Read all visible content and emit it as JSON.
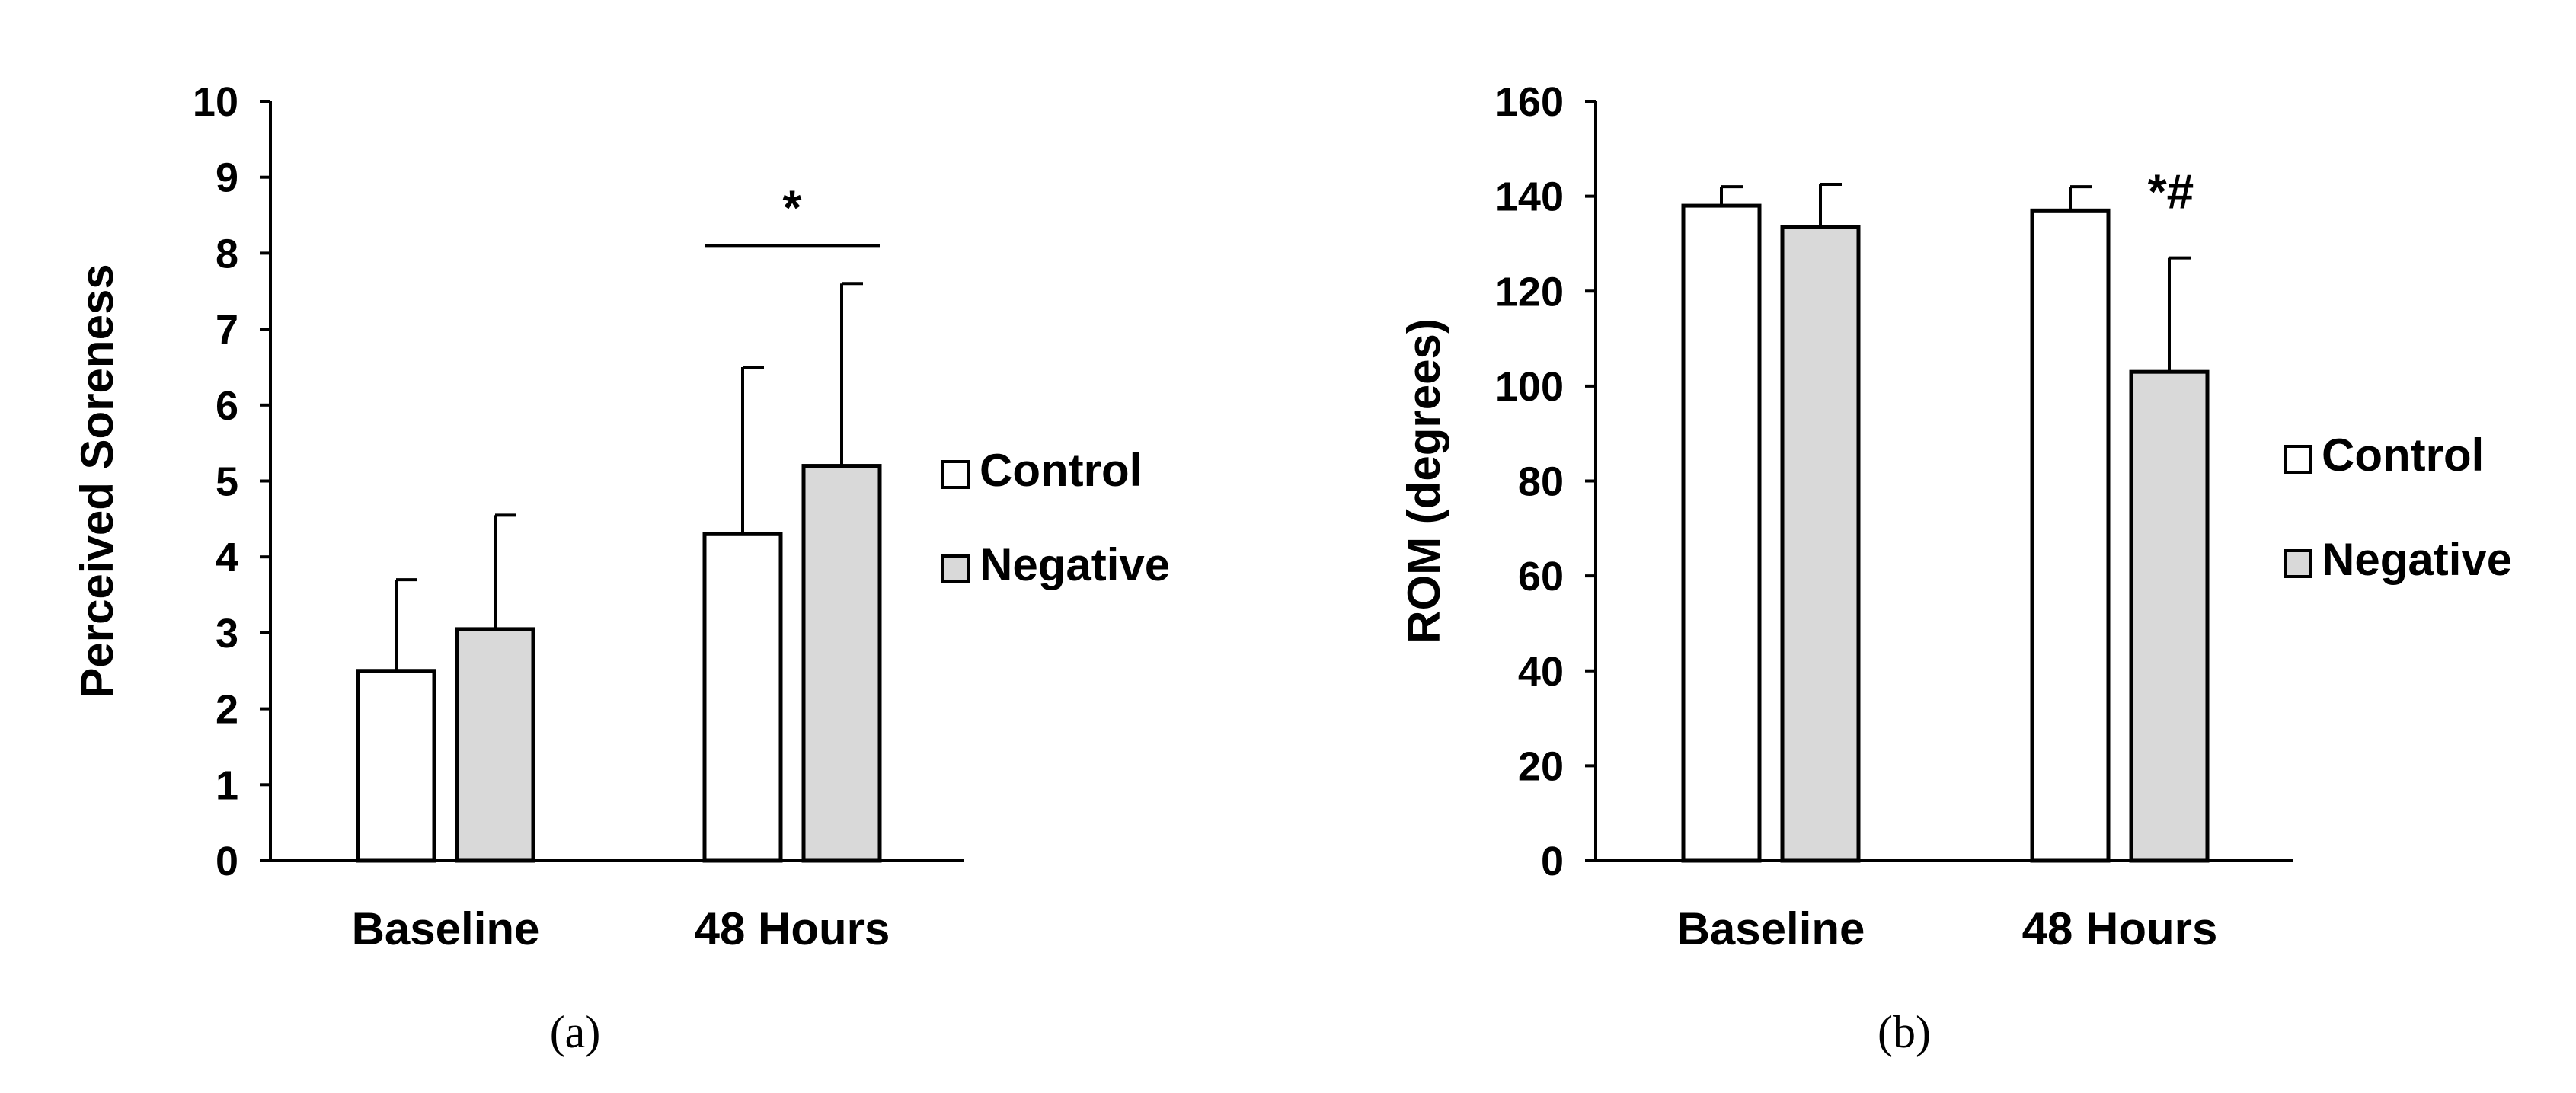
{
  "chart_data": [
    {
      "type": "bar",
      "panel_label": "(a)",
      "title": "",
      "xlabel": "",
      "ylabel": "Perceived Soreness",
      "categories": [
        "Baseline",
        "48 Hours"
      ],
      "series": [
        {
          "name": "Control",
          "color": "#ffffff",
          "values": [
            2.5,
            4.3
          ],
          "errors": [
            1.2,
            2.2
          ]
        },
        {
          "name": "Negative",
          "color": "#d9d9d9",
          "values": [
            3.05,
            5.2
          ],
          "errors": [
            1.5,
            2.4
          ]
        }
      ],
      "ylim": [
        0,
        10
      ],
      "yticks": [
        "0",
        "1",
        "2",
        "3",
        "4",
        "5",
        "6",
        "7",
        "8",
        "9",
        "10"
      ],
      "legend_position": "right",
      "grid": false,
      "annotations": [
        {
          "text": "*",
          "category": "48 Hours",
          "kind": "bracket",
          "y": 8.1
        }
      ]
    },
    {
      "type": "bar",
      "panel_label": "(b)",
      "title": "",
      "xlabel": "",
      "ylabel": "ROM (degrees)",
      "categories": [
        "Baseline",
        "48 Hours"
      ],
      "series": [
        {
          "name": "Control",
          "color": "#ffffff",
          "values": [
            138,
            137
          ],
          "errors": [
            4,
            5
          ]
        },
        {
          "name": "Negative",
          "color": "#d9d9d9",
          "values": [
            133.5,
            103
          ],
          "errors": [
            9,
            24
          ]
        }
      ],
      "ylim": [
        0,
        160
      ],
      "yticks": [
        "0",
        "20",
        "40",
        "60",
        "80",
        "100",
        "120",
        "140",
        "160"
      ],
      "legend_position": "right",
      "grid": false,
      "annotations": [
        {
          "text": "*#",
          "category": "48 Hours",
          "series": "Negative",
          "kind": "label",
          "y": 141
        }
      ]
    }
  ]
}
